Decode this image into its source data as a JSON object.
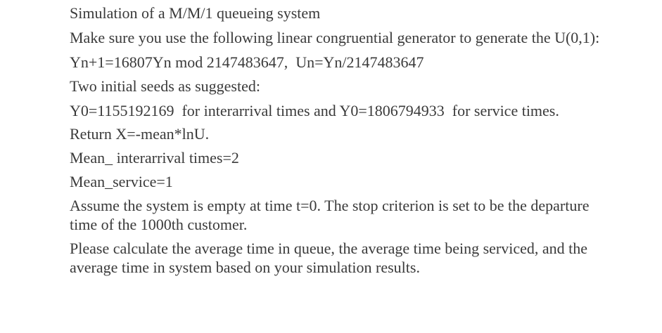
{
  "document": {
    "paragraphs": [
      "Simulation of a M/M/1 queueing system",
      "Make sure you use the following linear congruential generator to generate the U(0,1):",
      "Yn+1=16807Yn mod 2147483647,  Un=Yn/2147483647",
      "Two initial seeds as suggested:",
      "Y0=1155192169  for interarrival times and Y0=1806794933  for service times.",
      "Return X=-mean*lnU.",
      "Mean_ interarrival times=2",
      "Mean_service=1",
      "Assume the system is empty at time t=0. The stop criterion is set to be the departure time of the 1000th customer.",
      "Please calculate the average time in queue, the average time being serviced, and the average time in system based on your simulation results."
    ]
  }
}
